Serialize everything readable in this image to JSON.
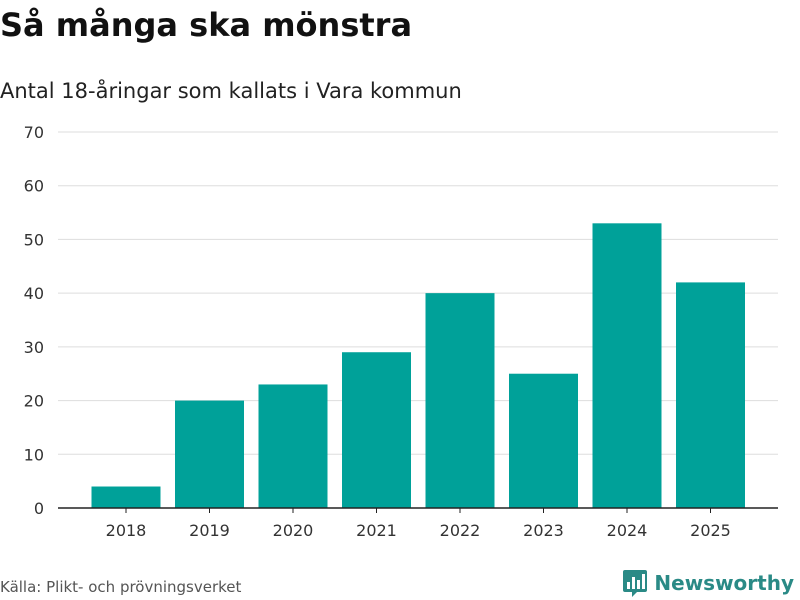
{
  "header": {
    "title": "Så många ska mönstra",
    "subtitle": "Antal 18-åringar som kallats i Vara kommun"
  },
  "footer": {
    "source": "Källa: Plikt- och prövningsverket",
    "brand": "Newsworthy",
    "brand_icon": "bar-chart-logo-icon"
  },
  "colors": {
    "bar": "#00a199",
    "grid": "#dddddd",
    "axis": "#222222",
    "brand": "#2a8a86"
  },
  "chart_data": {
    "type": "bar",
    "title": "Så många ska mönstra",
    "subtitle": "Antal 18-åringar som kallats i Vara kommun",
    "categories": [
      "2018",
      "2019",
      "2020",
      "2021",
      "2022",
      "2023",
      "2024",
      "2025"
    ],
    "values": [
      4,
      20,
      23,
      29,
      40,
      25,
      53,
      42
    ],
    "ylim": [
      0,
      70
    ],
    "yticks": [
      0,
      10,
      20,
      30,
      40,
      50,
      60,
      70
    ],
    "xlabel": "",
    "ylabel": "",
    "grid": true,
    "legend": "none"
  }
}
